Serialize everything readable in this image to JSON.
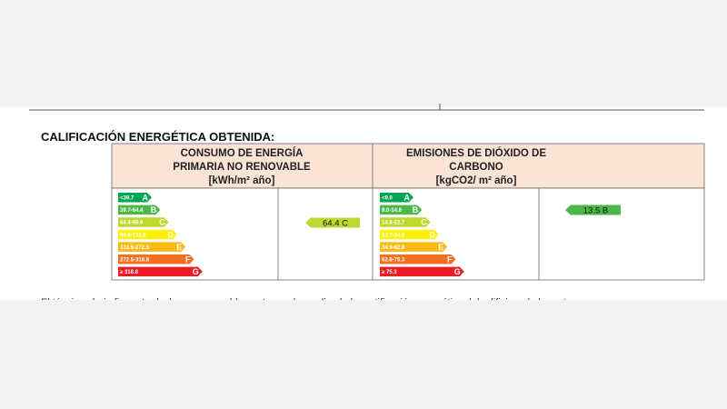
{
  "header": {
    "title": "CALIFICACIÓN ENERGÉTICA OBTENIDA:"
  },
  "table": {
    "columns": [
      {
        "title_lines": [
          "CONSUMO DE ENERGÍA",
          "PRIMARIA NO RENOVABLE"
        ],
        "unit": "[kWh/m² año]",
        "bars": [
          {
            "range": "<39.7",
            "letter": "A"
          },
          {
            "range": "39.7-64.4",
            "letter": "B"
          },
          {
            "range": "64.4-99.9",
            "letter": "C"
          },
          {
            "range": "99.9-133.6",
            "letter": "D"
          },
          {
            "range": "133.6-272.5",
            "letter": "E"
          },
          {
            "range": "272.5-318.8",
            "letter": "F"
          },
          {
            "range": "≥ 318.8",
            "letter": "G"
          }
        ],
        "rating": "64.4 C"
      },
      {
        "title_lines": [
          "EMISIONES DE DIÓXIDO DE",
          "CARBONO"
        ],
        "unit": "[kgCO2/ m² año]",
        "bars": [
          {
            "range": "<9.0",
            "letter": "A"
          },
          {
            "range": "9.0-14.6",
            "letter": "B"
          },
          {
            "range": "14.6-22.7",
            "letter": "C"
          },
          {
            "range": "22.7-34.9",
            "letter": "D"
          },
          {
            "range": "34.9-62.8",
            "letter": "E"
          },
          {
            "range": "62.8-75.3",
            "letter": "F"
          },
          {
            "range": "≥ 75.3",
            "letter": "G"
          }
        ],
        "rating": "13.5 B"
      }
    ]
  },
  "footer_text": "El técnico abajo firmante declara responsablemente que ha realizado la certificación energética del edificio o de la parte que se"
}
